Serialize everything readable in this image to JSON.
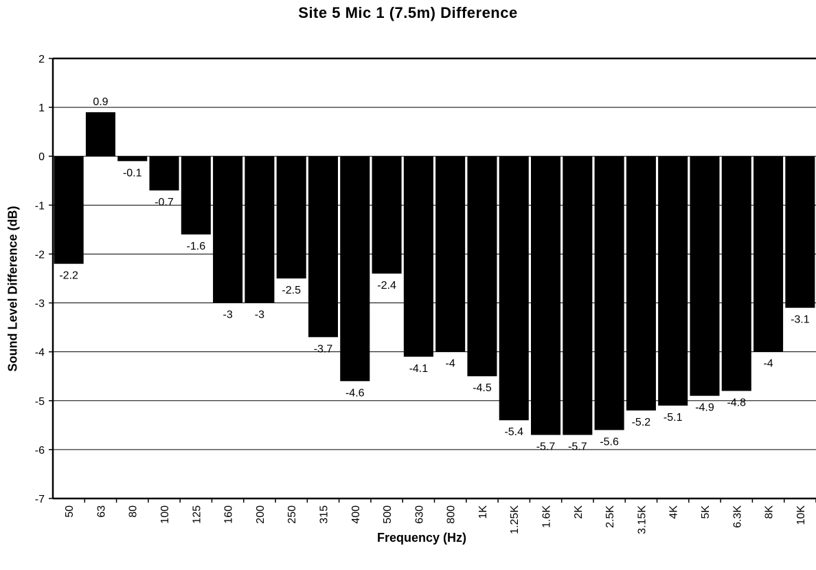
{
  "chart_data": {
    "type": "bar",
    "title": "Site 5 Mic 1 (7.5m) Difference",
    "xlabel": "Frequency (Hz)",
    "ylabel": "Sound Level Difference (dB)",
    "ylim": [
      -7,
      2
    ],
    "yticks": [
      "2",
      "1",
      "0",
      "-1",
      "-2",
      "-3",
      "-4",
      "-5",
      "-6",
      "-7"
    ],
    "grid": "horizontal",
    "legend": "none",
    "categories": [
      "50",
      "63",
      "80",
      "100",
      "125",
      "160",
      "200",
      "250",
      "315",
      "400",
      "500",
      "630",
      "800",
      "1K",
      "1.25K",
      "1.6K",
      "2K",
      "2.5K",
      "3.15K",
      "4K",
      "5K",
      "6.3K",
      "8K",
      "10K"
    ],
    "values": [
      -2.2,
      0.9,
      -0.1,
      -0.7,
      -1.6,
      -3,
      -3,
      -2.5,
      -3.7,
      -4.6,
      -2.4,
      -4.1,
      -4,
      -4.5,
      -5.4,
      -5.7,
      -5.7,
      -5.6,
      -5.2,
      -5.1,
      -4.9,
      -4.8,
      -4,
      -3.1
    ],
    "data_labels": [
      "-2.2",
      "0.9",
      "-0.1",
      "-0.7",
      "-1.6",
      "-3",
      "-3",
      "-2.5",
      "-3.7",
      "-4.6",
      "-2.4",
      "-4.1",
      "-4",
      "-4.5",
      "-5.4",
      "-5.7",
      "-5.7",
      "-5.6",
      "-5.2",
      "-5.1",
      "-4.9",
      "-4.8",
      "-4",
      "-3.1"
    ],
    "bar_color": "#000000"
  }
}
